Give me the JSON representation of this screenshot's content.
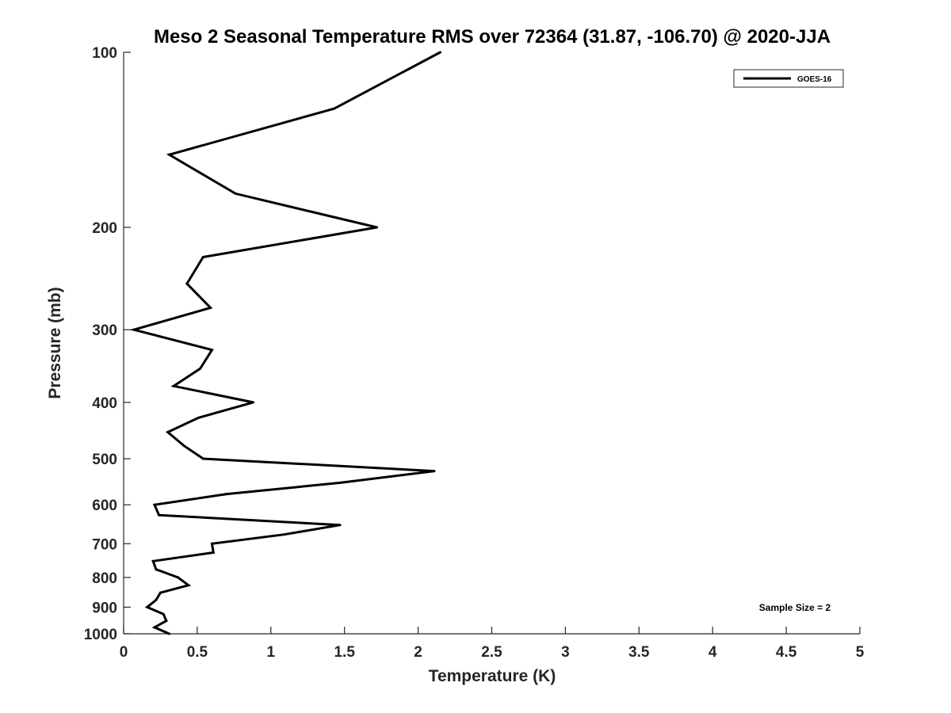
{
  "chart_data": {
    "type": "line",
    "title": "Meso 2 Seasonal Temperature RMS over 72364 (31.87, -106.70) @ 2020-JJA",
    "xlabel": "Temperature (K)",
    "ylabel": "Pressure (mb)",
    "xlim": [
      0,
      5
    ],
    "ylim": [
      100,
      1000
    ],
    "y_scale": "log",
    "y_reversed": true,
    "grid": false,
    "legend_position": "top-right",
    "x_ticks": [
      {
        "value": 0,
        "label": "0"
      },
      {
        "value": 0.5,
        "label": "0.5"
      },
      {
        "value": 1,
        "label": "1"
      },
      {
        "value": 1.5,
        "label": "1.5"
      },
      {
        "value": 2,
        "label": "2"
      },
      {
        "value": 2.5,
        "label": "2.5"
      },
      {
        "value": 3,
        "label": "3"
      },
      {
        "value": 3.5,
        "label": "3.5"
      },
      {
        "value": 4,
        "label": "4"
      },
      {
        "value": 4.5,
        "label": "4.5"
      },
      {
        "value": 5,
        "label": "5"
      }
    ],
    "y_ticks": [
      {
        "value": 100,
        "label": "100"
      },
      {
        "value": 200,
        "label": "200"
      },
      {
        "value": 300,
        "label": "300"
      },
      {
        "value": 400,
        "label": "400"
      },
      {
        "value": 500,
        "label": "500"
      },
      {
        "value": 600,
        "label": "600"
      },
      {
        "value": 700,
        "label": "700"
      },
      {
        "value": 800,
        "label": "800"
      },
      {
        "value": 900,
        "label": "900"
      },
      {
        "value": 1000,
        "label": "1000"
      }
    ],
    "series": [
      {
        "name": "GOES-16",
        "color": "#000000",
        "points": [
          {
            "temperature": 2.15,
            "pressure": 100
          },
          {
            "temperature": 1.43,
            "pressure": 125
          },
          {
            "temperature": 0.31,
            "pressure": 150
          },
          {
            "temperature": 0.76,
            "pressure": 175
          },
          {
            "temperature": 1.72,
            "pressure": 200
          },
          {
            "temperature": 0.54,
            "pressure": 225
          },
          {
            "temperature": 0.43,
            "pressure": 250
          },
          {
            "temperature": 0.59,
            "pressure": 275
          },
          {
            "temperature": 0.07,
            "pressure": 300
          },
          {
            "temperature": 0.6,
            "pressure": 325
          },
          {
            "temperature": 0.52,
            "pressure": 350
          },
          {
            "temperature": 0.34,
            "pressure": 375
          },
          {
            "temperature": 0.88,
            "pressure": 400
          },
          {
            "temperature": 0.51,
            "pressure": 425
          },
          {
            "temperature": 0.3,
            "pressure": 450
          },
          {
            "temperature": 0.41,
            "pressure": 475
          },
          {
            "temperature": 0.54,
            "pressure": 500
          },
          {
            "temperature": 2.11,
            "pressure": 525
          },
          {
            "temperature": 1.47,
            "pressure": 550
          },
          {
            "temperature": 0.7,
            "pressure": 575
          },
          {
            "temperature": 0.21,
            "pressure": 600
          },
          {
            "temperature": 0.24,
            "pressure": 625
          },
          {
            "temperature": 1.47,
            "pressure": 650
          },
          {
            "temperature": 1.09,
            "pressure": 675
          },
          {
            "temperature": 0.6,
            "pressure": 700
          },
          {
            "temperature": 0.61,
            "pressure": 725
          },
          {
            "temperature": 0.2,
            "pressure": 750
          },
          {
            "temperature": 0.22,
            "pressure": 775
          },
          {
            "temperature": 0.37,
            "pressure": 800
          },
          {
            "temperature": 0.44,
            "pressure": 825
          },
          {
            "temperature": 0.25,
            "pressure": 850
          },
          {
            "temperature": 0.22,
            "pressure": 875
          },
          {
            "temperature": 0.16,
            "pressure": 900
          },
          {
            "temperature": 0.27,
            "pressure": 925
          },
          {
            "temperature": 0.29,
            "pressure": 950
          },
          {
            "temperature": 0.21,
            "pressure": 975
          },
          {
            "temperature": 0.31,
            "pressure": 1000
          }
        ]
      }
    ],
    "annotation": "Sample Size = 2"
  }
}
